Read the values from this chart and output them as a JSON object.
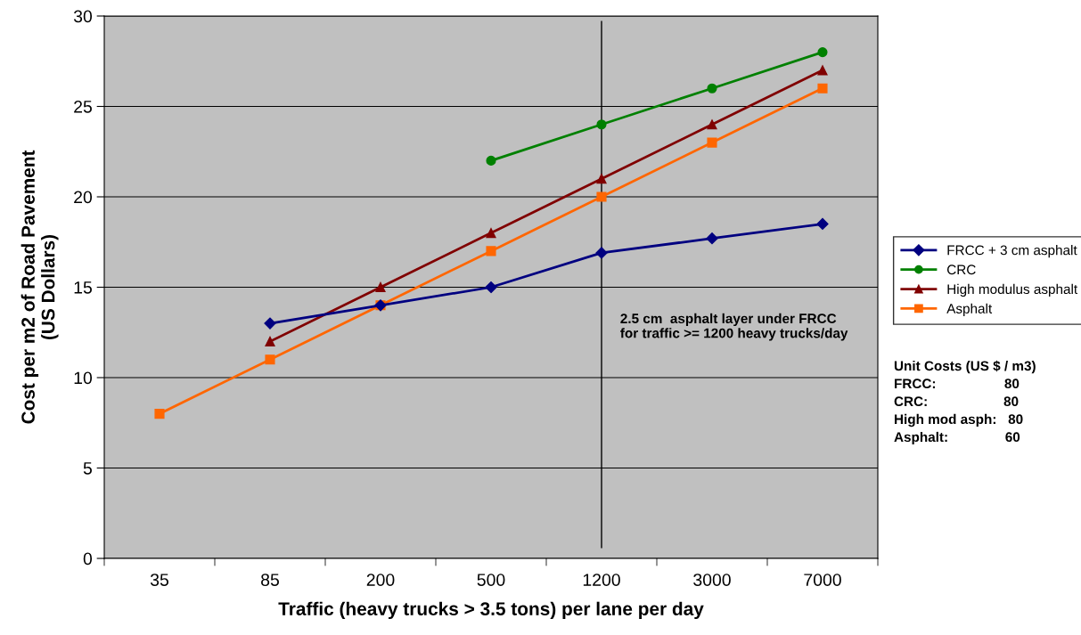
{
  "chart_data": {
    "type": "line",
    "xlabel": "Traffic (heavy trucks > 3.5 tons) per lane per day",
    "ylabel": "Cost per m2 of Road Pavement\n(US Dollars)",
    "categories": [
      "35",
      "85",
      "200",
      "500",
      "1200",
      "3000",
      "7000"
    ],
    "ylim": [
      0,
      30
    ],
    "yticks": [
      0,
      5,
      10,
      15,
      20,
      25,
      30
    ],
    "grid": "y",
    "legend": "right",
    "line_style": "solid",
    "series": [
      {
        "name": "FRCC + 3 cm asphalt",
        "color": "#000080",
        "marker": "diamond",
        "values": [
          null,
          13,
          14,
          15,
          16.9,
          17.7,
          18.5
        ]
      },
      {
        "name": "CRC",
        "color": "#008000",
        "marker": "circle",
        "values": [
          null,
          null,
          null,
          22,
          24,
          26,
          28
        ]
      },
      {
        "name": "High modulus asphalt",
        "color": "#800000",
        "marker": "triangle",
        "values": [
          null,
          12,
          15,
          18,
          21,
          24,
          27
        ]
      },
      {
        "name": "Asphalt",
        "color": "#ff6600",
        "marker": "square",
        "values": [
          8,
          11,
          14,
          17,
          20,
          23,
          26
        ]
      }
    ],
    "ref_lines": [
      {
        "axis": "x",
        "value": "1200",
        "color": "#000000"
      }
    ],
    "annotations": [
      {
        "text": "2.5 cm  asphalt layer under FRCC\nfor traffic >= 1200 heavy trucks/day",
        "x": "1200",
        "y": 12.8
      },
      "Unit Costs (US $ / m3)",
      "FRCC:                  80",
      "CRC:                    80",
      "High mod asph:   80",
      "Asphalt:               60"
    ]
  }
}
